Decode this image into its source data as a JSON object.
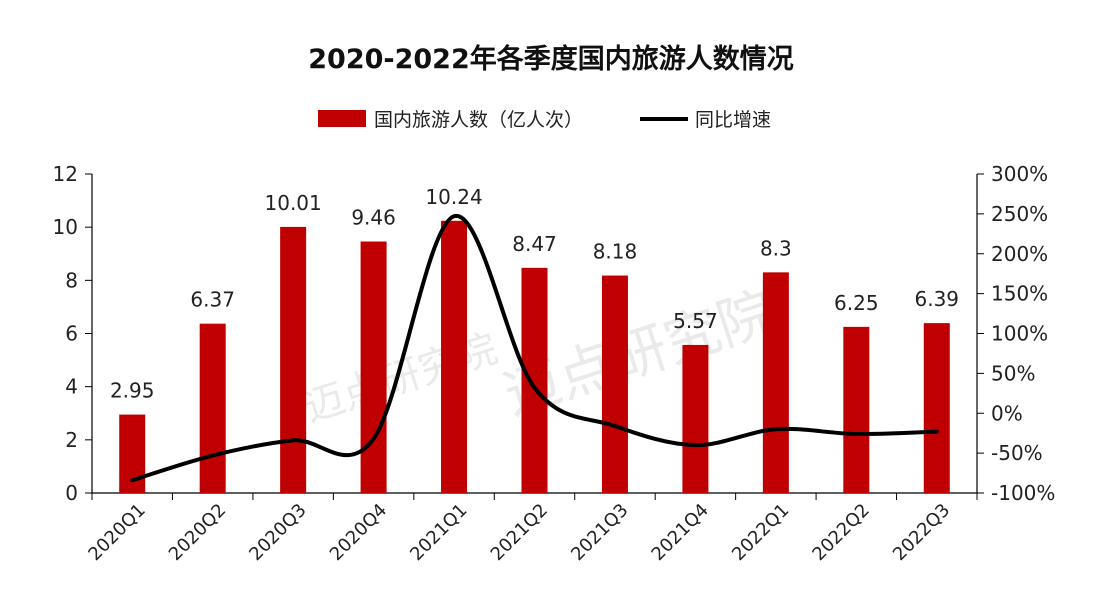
{
  "chart_data": {
    "type": "bar",
    "title": "2020-2022年各季度国内旅游人数情况",
    "categories": [
      "2020Q1",
      "2020Q2",
      "2020Q3",
      "2020Q4",
      "2021Q1",
      "2021Q2",
      "2021Q3",
      "2021Q4",
      "2022Q1",
      "2022Q2",
      "2022Q3"
    ],
    "series": [
      {
        "name": "国内旅游人数（亿人次）",
        "kind": "bar",
        "axis": "left",
        "color": "#c00000",
        "values": [
          2.95,
          6.37,
          10.01,
          9.46,
          10.24,
          8.47,
          8.18,
          5.57,
          8.3,
          6.25,
          6.39
        ],
        "labels": [
          "2.95",
          "6.37",
          "10.01",
          "9.46",
          "10.24",
          "8.47",
          "8.18",
          "5.57",
          "8.3",
          "6.25",
          "6.39"
        ]
      },
      {
        "name": "同比增速",
        "kind": "line",
        "axis": "right",
        "color": "#000000",
        "values": [
          -84,
          -53,
          -34,
          -32,
          247,
          32,
          -16,
          -40,
          -20,
          -26,
          -23
        ]
      }
    ],
    "y_left": {
      "min": 0,
      "max": 12,
      "ticks": [
        "0",
        "2",
        "4",
        "6",
        "8",
        "10",
        "12"
      ]
    },
    "y_right": {
      "min": -100,
      "max": 300,
      "ticks": [
        "-100%",
        "-50%",
        "0%",
        "50%",
        "100%",
        "150%",
        "200%",
        "250%",
        "300%"
      ]
    },
    "watermark": [
      "迈点研究院",
      "迈点研究院"
    ]
  }
}
